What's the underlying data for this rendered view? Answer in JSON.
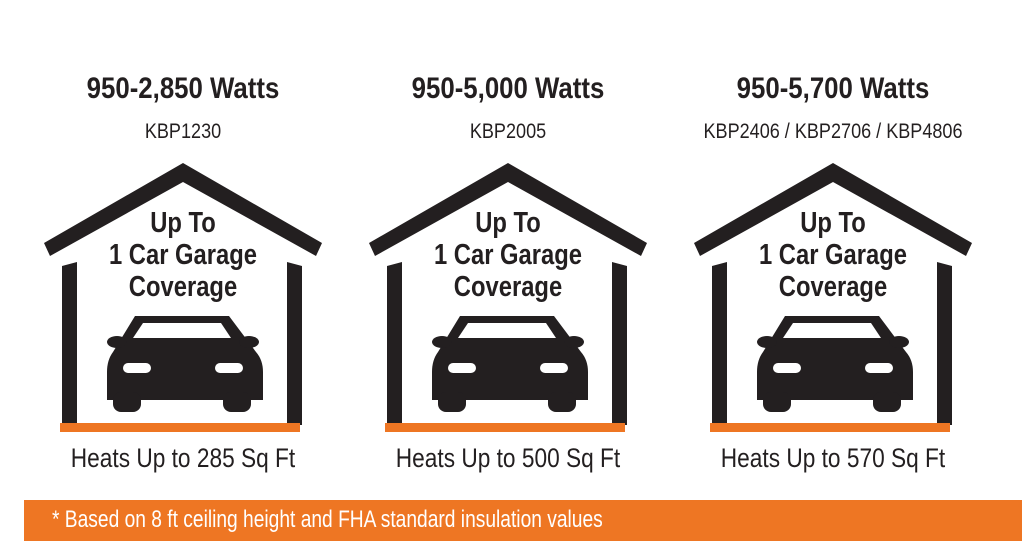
{
  "colors": {
    "accent": "#ee7623",
    "ink": "#231f20"
  },
  "panels": [
    {
      "watts": "950-2,850 Watts",
      "model": "KBP1230",
      "coverage": [
        "Up To",
        "1 Car Garage",
        "Coverage"
      ],
      "heats": "Heats Up to 285 Sq Ft",
      "icon": "garage-car-icon"
    },
    {
      "watts": "950-5,000 Watts",
      "model": "KBP2005",
      "coverage": [
        "Up To",
        "1 Car Garage",
        "Coverage"
      ],
      "heats": "Heats Up to 500 Sq Ft",
      "icon": "garage-car-icon"
    },
    {
      "watts": "950-5,700 Watts",
      "model": "KBP2406 / KBP2706 / KBP4806",
      "coverage": [
        "Up To",
        "1 Car Garage",
        "Coverage"
      ],
      "heats": "Heats Up to 570 Sq Ft",
      "icon": "garage-car-icon"
    }
  ],
  "footnote": "* Based on 8 ft ceiling height and FHA standard insulation values"
}
